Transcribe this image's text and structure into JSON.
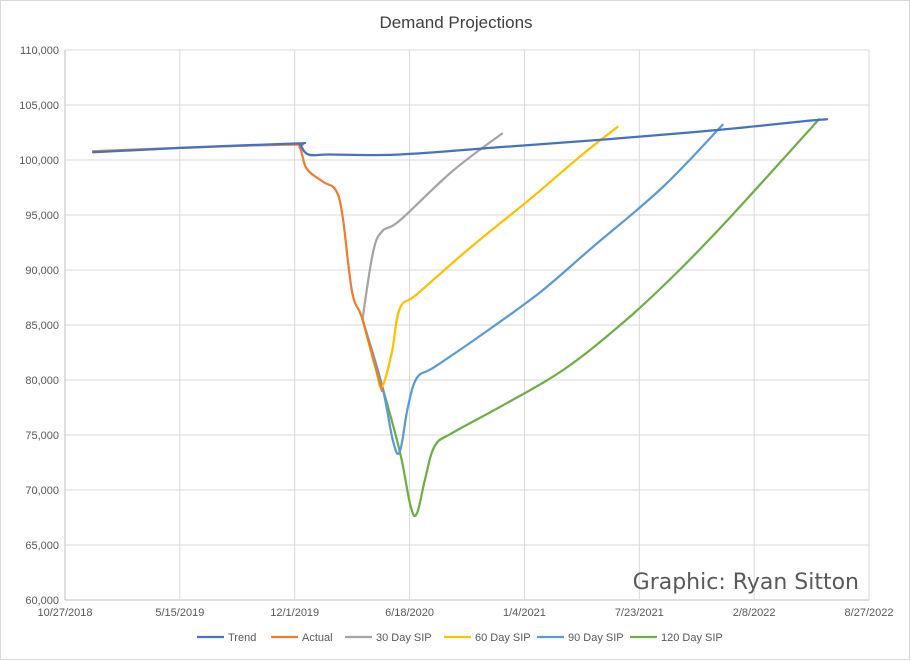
{
  "chart_data": {
    "type": "line",
    "title": "Demand Projections",
    "xlabel": "",
    "ylabel": "",
    "x_ticks": [
      "10/27/2018",
      "5/15/2019",
      "12/1/2019",
      "6/18/2020",
      "1/4/2021",
      "7/23/2021",
      "2/8/2022",
      "8/27/2022"
    ],
    "xlim": [
      "2018-10-27",
      "2022-08-27"
    ],
    "y_ticks": [
      "60,000",
      "65,000",
      "70,000",
      "75,000",
      "80,000",
      "85,000",
      "90,000",
      "95,000",
      "100,000",
      "105,000",
      "110,000"
    ],
    "ylim": [
      60000,
      110000
    ],
    "grid": true,
    "legend_position": "bottom",
    "watermark": "Graphic: Ryan Sitton",
    "series": [
      {
        "name": "Trend",
        "color": "#4472c4",
        "points": [
          [
            "2018-12-15",
            100700
          ],
          [
            "2019-05-15",
            101100
          ],
          [
            "2019-12-01",
            101500
          ],
          [
            "2019-12-10",
            101400
          ],
          [
            "2019-12-25",
            100500
          ],
          [
            "2020-02-01",
            100500
          ],
          [
            "2020-06-01",
            100500
          ],
          [
            "2020-12-01",
            101200
          ],
          [
            "2021-06-01",
            101900
          ],
          [
            "2021-12-01",
            102700
          ],
          [
            "2022-05-01",
            103500
          ],
          [
            "2022-06-15",
            103700
          ]
        ]
      },
      {
        "name": "Actual",
        "color": "#ed7d31",
        "points": [
          [
            "2018-12-15",
            100800
          ],
          [
            "2019-05-15",
            101100
          ],
          [
            "2019-11-25",
            101400
          ],
          [
            "2019-12-10",
            101100
          ],
          [
            "2019-12-22",
            99200
          ],
          [
            "2020-01-20",
            98000
          ],
          [
            "2020-02-10",
            97300
          ],
          [
            "2020-02-22",
            95000
          ],
          [
            "2020-03-10",
            88000
          ],
          [
            "2020-03-28",
            85500
          ],
          [
            "2020-05-01",
            79000
          ]
        ]
      },
      {
        "name": "30 Day SIP",
        "color": "#a5a5a5",
        "points": [
          [
            "2020-03-28",
            85500
          ],
          [
            "2020-04-15",
            91500
          ],
          [
            "2020-05-01",
            93500
          ],
          [
            "2020-06-01",
            94500
          ],
          [
            "2020-09-01",
            99000
          ],
          [
            "2020-11-26",
            102400
          ]
        ]
      },
      {
        "name": "60 Day SIP",
        "color": "#ffc000",
        "points": [
          [
            "2020-03-28",
            85500
          ],
          [
            "2020-04-20",
            81000
          ],
          [
            "2020-05-01",
            79400
          ],
          [
            "2020-05-18",
            82500
          ],
          [
            "2020-06-01",
            86500
          ],
          [
            "2020-07-01",
            87800
          ],
          [
            "2020-10-01",
            92000
          ],
          [
            "2021-01-15",
            96500
          ],
          [
            "2021-04-15",
            100500
          ],
          [
            "2021-06-15",
            103000
          ]
        ]
      },
      {
        "name": "90 Day SIP",
        "color": "#5b9bd5",
        "points": [
          [
            "2020-03-28",
            85500
          ],
          [
            "2020-05-01",
            79500
          ],
          [
            "2020-05-20",
            74500
          ],
          [
            "2020-06-01",
            73500
          ],
          [
            "2020-06-15",
            77500
          ],
          [
            "2020-07-01",
            80200
          ],
          [
            "2020-08-01",
            81200
          ],
          [
            "2020-11-01",
            84500
          ],
          [
            "2021-02-01",
            88000
          ],
          [
            "2021-05-01",
            92000
          ],
          [
            "2021-09-01",
            97500
          ],
          [
            "2021-12-15",
            103200
          ]
        ]
      },
      {
        "name": "120 Day SIP",
        "color": "#70ad47",
        "points": [
          [
            "2020-03-28",
            85500
          ],
          [
            "2020-05-01",
            79500
          ],
          [
            "2020-06-01",
            73500
          ],
          [
            "2020-06-20",
            68500
          ],
          [
            "2020-07-01",
            67900
          ],
          [
            "2020-07-15",
            71000
          ],
          [
            "2020-08-01",
            74000
          ],
          [
            "2020-09-01",
            75200
          ],
          [
            "2020-12-01",
            77800
          ],
          [
            "2021-03-15",
            81000
          ],
          [
            "2021-07-01",
            85500
          ],
          [
            "2021-10-01",
            90000
          ],
          [
            "2022-01-01",
            95000
          ],
          [
            "2022-06-01",
            103700
          ]
        ]
      }
    ]
  }
}
